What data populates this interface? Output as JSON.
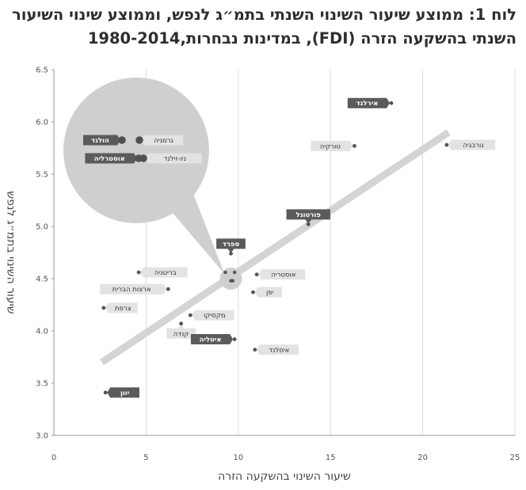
{
  "title": {
    "line1": "לוח 1: ממוצע שיעור השינוי השנתי בתמ״ג לנפש, וממוצע שינוי השיעור",
    "line2": "השנתי בהשקעה הזרה (FDI), במדינות נבחרות,1980-2014"
  },
  "chart_data": {
    "type": "scatter",
    "xlabel": "שיעור השינוי בהשקעה הזרה",
    "ylabel": "שיעור השינוי בתמ״ג לנפש",
    "xlim": [
      0,
      25
    ],
    "ylim": [
      3.0,
      6.5
    ],
    "xticks": [
      0,
      5,
      10,
      15,
      20,
      25
    ],
    "yticks": [
      3.0,
      3.5,
      4.0,
      4.5,
      5.0,
      5.5,
      6.0,
      6.5
    ],
    "grid": "vertical",
    "trendline": {
      "x": [
        2.6,
        21.4
      ],
      "y": [
        3.7,
        5.9
      ]
    },
    "points": [
      {
        "name": "אירלנד",
        "x": 18.3,
        "y": 6.18,
        "highlight": true
      },
      {
        "name": "טורקיה",
        "x": 16.3,
        "y": 5.77,
        "highlight": false
      },
      {
        "name": "נורבגיה",
        "x": 21.3,
        "y": 5.78,
        "highlight": false
      },
      {
        "name": "פורטוגל",
        "x": 13.8,
        "y": 5.02,
        "highlight": true
      },
      {
        "name": "ספרד",
        "x": 9.6,
        "y": 4.74,
        "highlight": true
      },
      {
        "name": "בריטניה",
        "x": 4.6,
        "y": 4.56,
        "highlight": false
      },
      {
        "name": "ארצות הברית",
        "x": 6.2,
        "y": 4.4,
        "highlight": false
      },
      {
        "name": "צרפת",
        "x": 2.7,
        "y": 4.22,
        "highlight": false
      },
      {
        "name": "אוסטריה",
        "x": 11.0,
        "y": 4.54,
        "highlight": false
      },
      {
        "name": "יפן",
        "x": 10.8,
        "y": 4.37,
        "highlight": false
      },
      {
        "name": "מקסיקו",
        "x": 7.4,
        "y": 4.15,
        "highlight": false
      },
      {
        "name": "קנדה",
        "x": 6.9,
        "y": 4.07,
        "highlight": false
      },
      {
        "name": "איטליה",
        "x": 9.8,
        "y": 3.92,
        "highlight": true
      },
      {
        "name": "איסלנד",
        "x": 10.9,
        "y": 3.82,
        "highlight": false
      },
      {
        "name": "יוון",
        "x": 2.8,
        "y": 3.41,
        "highlight": true
      }
    ],
    "cluster": {
      "center": {
        "x": 9.6,
        "y": 4.5
      },
      "points": [
        {
          "name": "הולנד",
          "x": 9.3,
          "y": 4.56
        },
        {
          "name": "גרמניה",
          "x": 9.8,
          "y": 4.56
        },
        {
          "name": "ניו-זילנד",
          "x": 9.6,
          "y": 4.48
        },
        {
          "name": "אוסטרליה",
          "x": 9.7,
          "y": 4.48
        }
      ]
    }
  }
}
